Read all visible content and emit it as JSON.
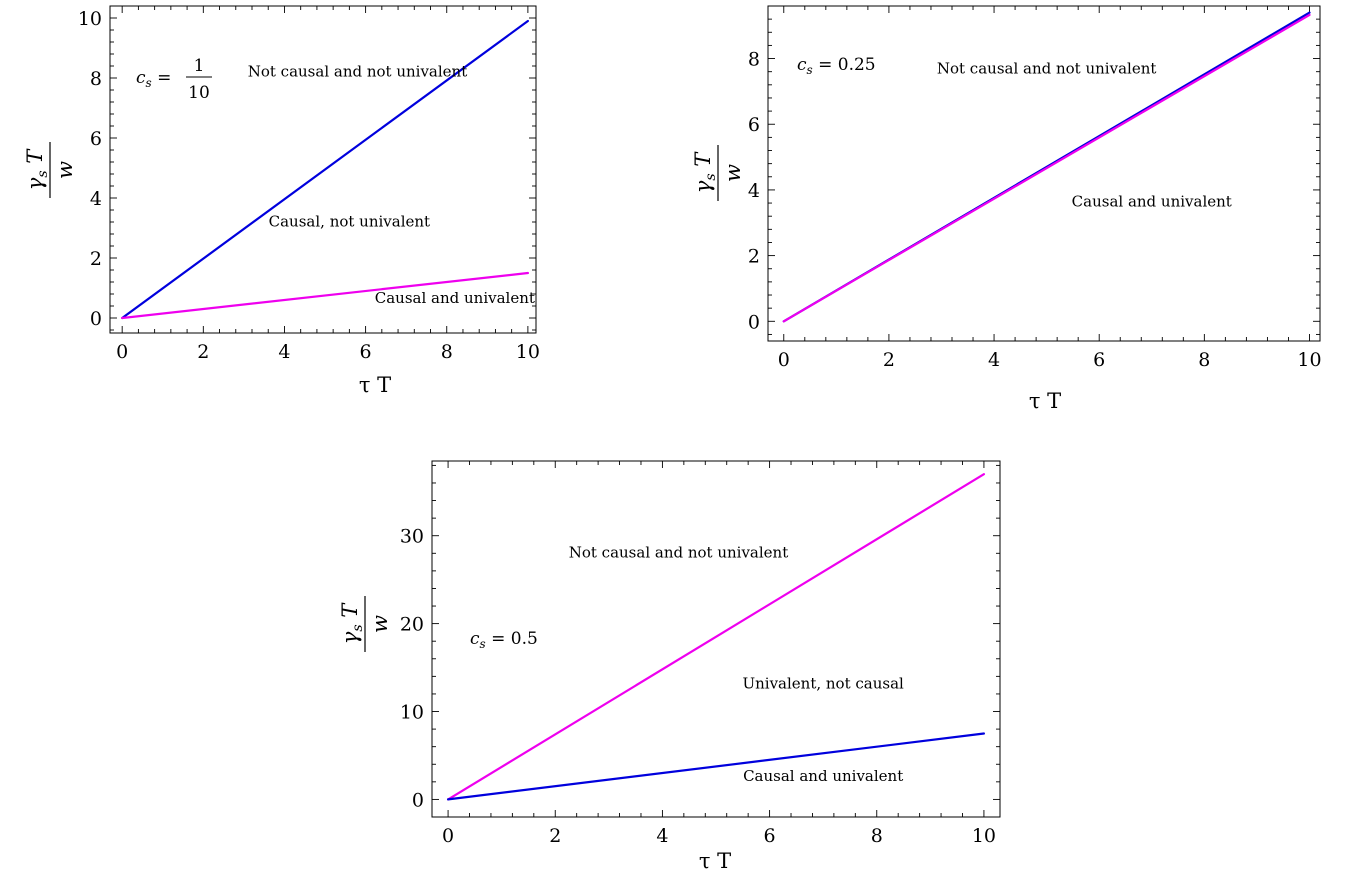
{
  "chart_data": [
    {
      "type": "line",
      "xlabel": "τ T",
      "ylabel": {
        "numerator_symbol": "γ",
        "numerator_subscript": "s",
        "numerator_var": "T",
        "denominator": "w"
      },
      "xlim": [
        -0.3,
        10.2
      ],
      "ylim": [
        -0.5,
        10.4
      ],
      "xticks": [
        0,
        2,
        4,
        6,
        8,
        10
      ],
      "yticks": [
        0,
        2,
        4,
        6,
        8,
        10
      ],
      "cs_label": {
        "symbol": "c",
        "subscript": "s",
        "equals": "=",
        "numerator": "1",
        "denominator": "10"
      },
      "series": [
        {
          "color": "#0000dd",
          "x": [
            0,
            10
          ],
          "y": [
            0,
            9.9
          ]
        },
        {
          "color": "#ee00ee",
          "x": [
            0,
            10
          ],
          "y": [
            0,
            1.5
          ]
        }
      ],
      "annotations": [
        {
          "text": "Not causal and not univalent",
          "x": 5.8,
          "y": 8.05
        },
        {
          "text": "Causal, not univalent",
          "x": 5.6,
          "y": 3.05
        },
        {
          "text": "Causal and univalent",
          "x": 8.2,
          "y": 0.5
        }
      ]
    },
    {
      "type": "line",
      "xlabel": "τ T",
      "ylabel": {
        "numerator_symbol": "γ",
        "numerator_subscript": "s",
        "numerator_var": "T",
        "denominator": "w"
      },
      "xlim": [
        -0.3,
        10.2
      ],
      "ylim": [
        -0.6,
        9.6
      ],
      "xticks": [
        0,
        2,
        4,
        6,
        8,
        10
      ],
      "yticks": [
        0,
        2,
        4,
        6,
        8
      ],
      "cs_label": {
        "symbol": "c",
        "subscript": "s",
        "equals": "=",
        "value": "0.25"
      },
      "series": [
        {
          "color": "#0000dd",
          "x": [
            0,
            10
          ],
          "y": [
            0,
            9.4
          ]
        },
        {
          "color": "#ee00ee",
          "x": [
            0,
            10
          ],
          "y": [
            0,
            9.33
          ]
        }
      ],
      "annotations": [
        {
          "text": "Not causal and not univalent",
          "x": 5.0,
          "y": 7.55
        },
        {
          "text": "Causal and univalent",
          "x": 7.0,
          "y": 3.5
        }
      ]
    },
    {
      "type": "line",
      "xlabel": "τ T",
      "ylabel": {
        "numerator_symbol": "γ",
        "numerator_subscript": "s",
        "numerator_var": "T",
        "denominator": "w"
      },
      "xlim": [
        -0.3,
        10.3
      ],
      "ylim": [
        -2,
        38.5
      ],
      "xticks": [
        0,
        2,
        4,
        6,
        8,
        10
      ],
      "yticks": [
        0,
        10,
        20,
        30
      ],
      "cs_label": {
        "symbol": "c",
        "subscript": "s",
        "equals": "=",
        "value": "0.5"
      },
      "series": [
        {
          "color": "#ee00ee",
          "x": [
            0,
            10
          ],
          "y": [
            0,
            37
          ]
        },
        {
          "color": "#0000dd",
          "x": [
            0,
            10
          ],
          "y": [
            0,
            7.5
          ]
        }
      ],
      "annotations": [
        {
          "text": "Not causal and not univalent",
          "x": 4.3,
          "y": 27.5
        },
        {
          "text": "Univalent, not causal",
          "x": 7.0,
          "y": 12.6
        },
        {
          "text": "Causal and univalent",
          "x": 7.0,
          "y": 2.1
        }
      ]
    }
  ]
}
